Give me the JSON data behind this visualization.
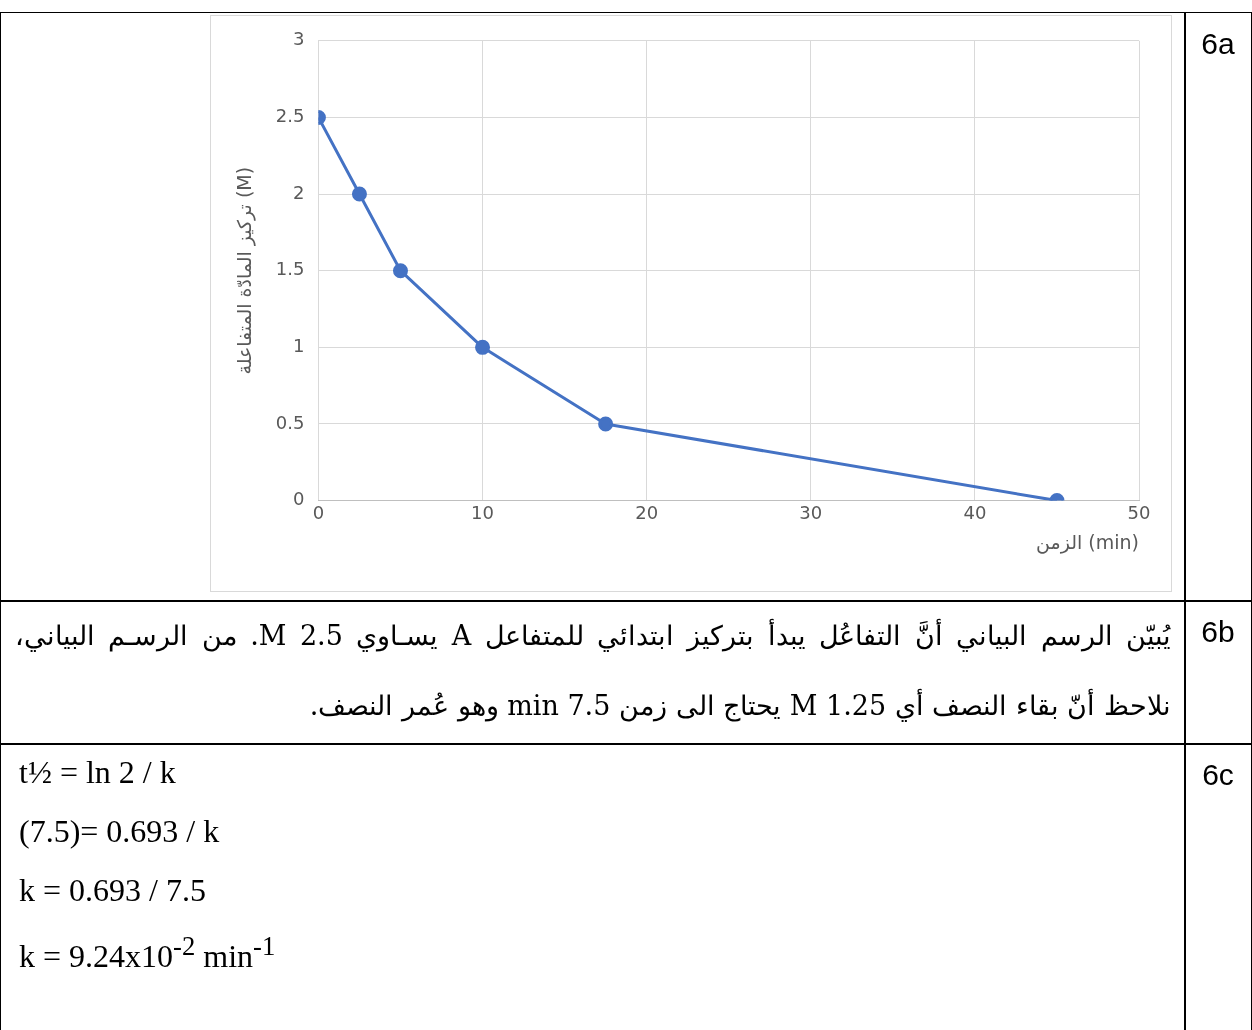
{
  "chart_data": {
    "type": "line",
    "x": [
      0,
      2.5,
      5,
      10,
      17.5,
      45
    ],
    "series": [
      {
        "color": "#4472c4",
        "values": [
          2.5,
          2,
          1.5,
          1,
          0.5,
          0
        ]
      }
    ],
    "xlim": [
      0,
      50
    ],
    "xticks": [
      0,
      10,
      20,
      30,
      40,
      50
    ],
    "ylim": [
      0,
      3
    ],
    "yticks": [
      0,
      0.5,
      1,
      1.5,
      2,
      2.5,
      3
    ],
    "xlabel": "الزمن (min)",
    "ylabel": "تركيز المادّة المتفاعلة (M)",
    "grid": true,
    "marker": "circle",
    "legend": false,
    "annotations": [
      "6a",
      "6b",
      "يُبيّن الرسم البياني أنَّ التفاعُل يبدأ بتركيز ابتدائي للمتفاعل A يسـاوي 2.5 M. من الرسـم البياني، نلاحظ أنّ بقاء النصف أي 1.25 M يحتاج الى زمن 7.5 min وهو عُمر النصف.",
      "6c",
      "t½ = ln 2 / k",
      "(7.5)= 0.693 / k",
      "k = 0.693 / 7.5",
      "k = 9.24x10$^{-2}$ min$^{-1}$"
    ]
  }
}
